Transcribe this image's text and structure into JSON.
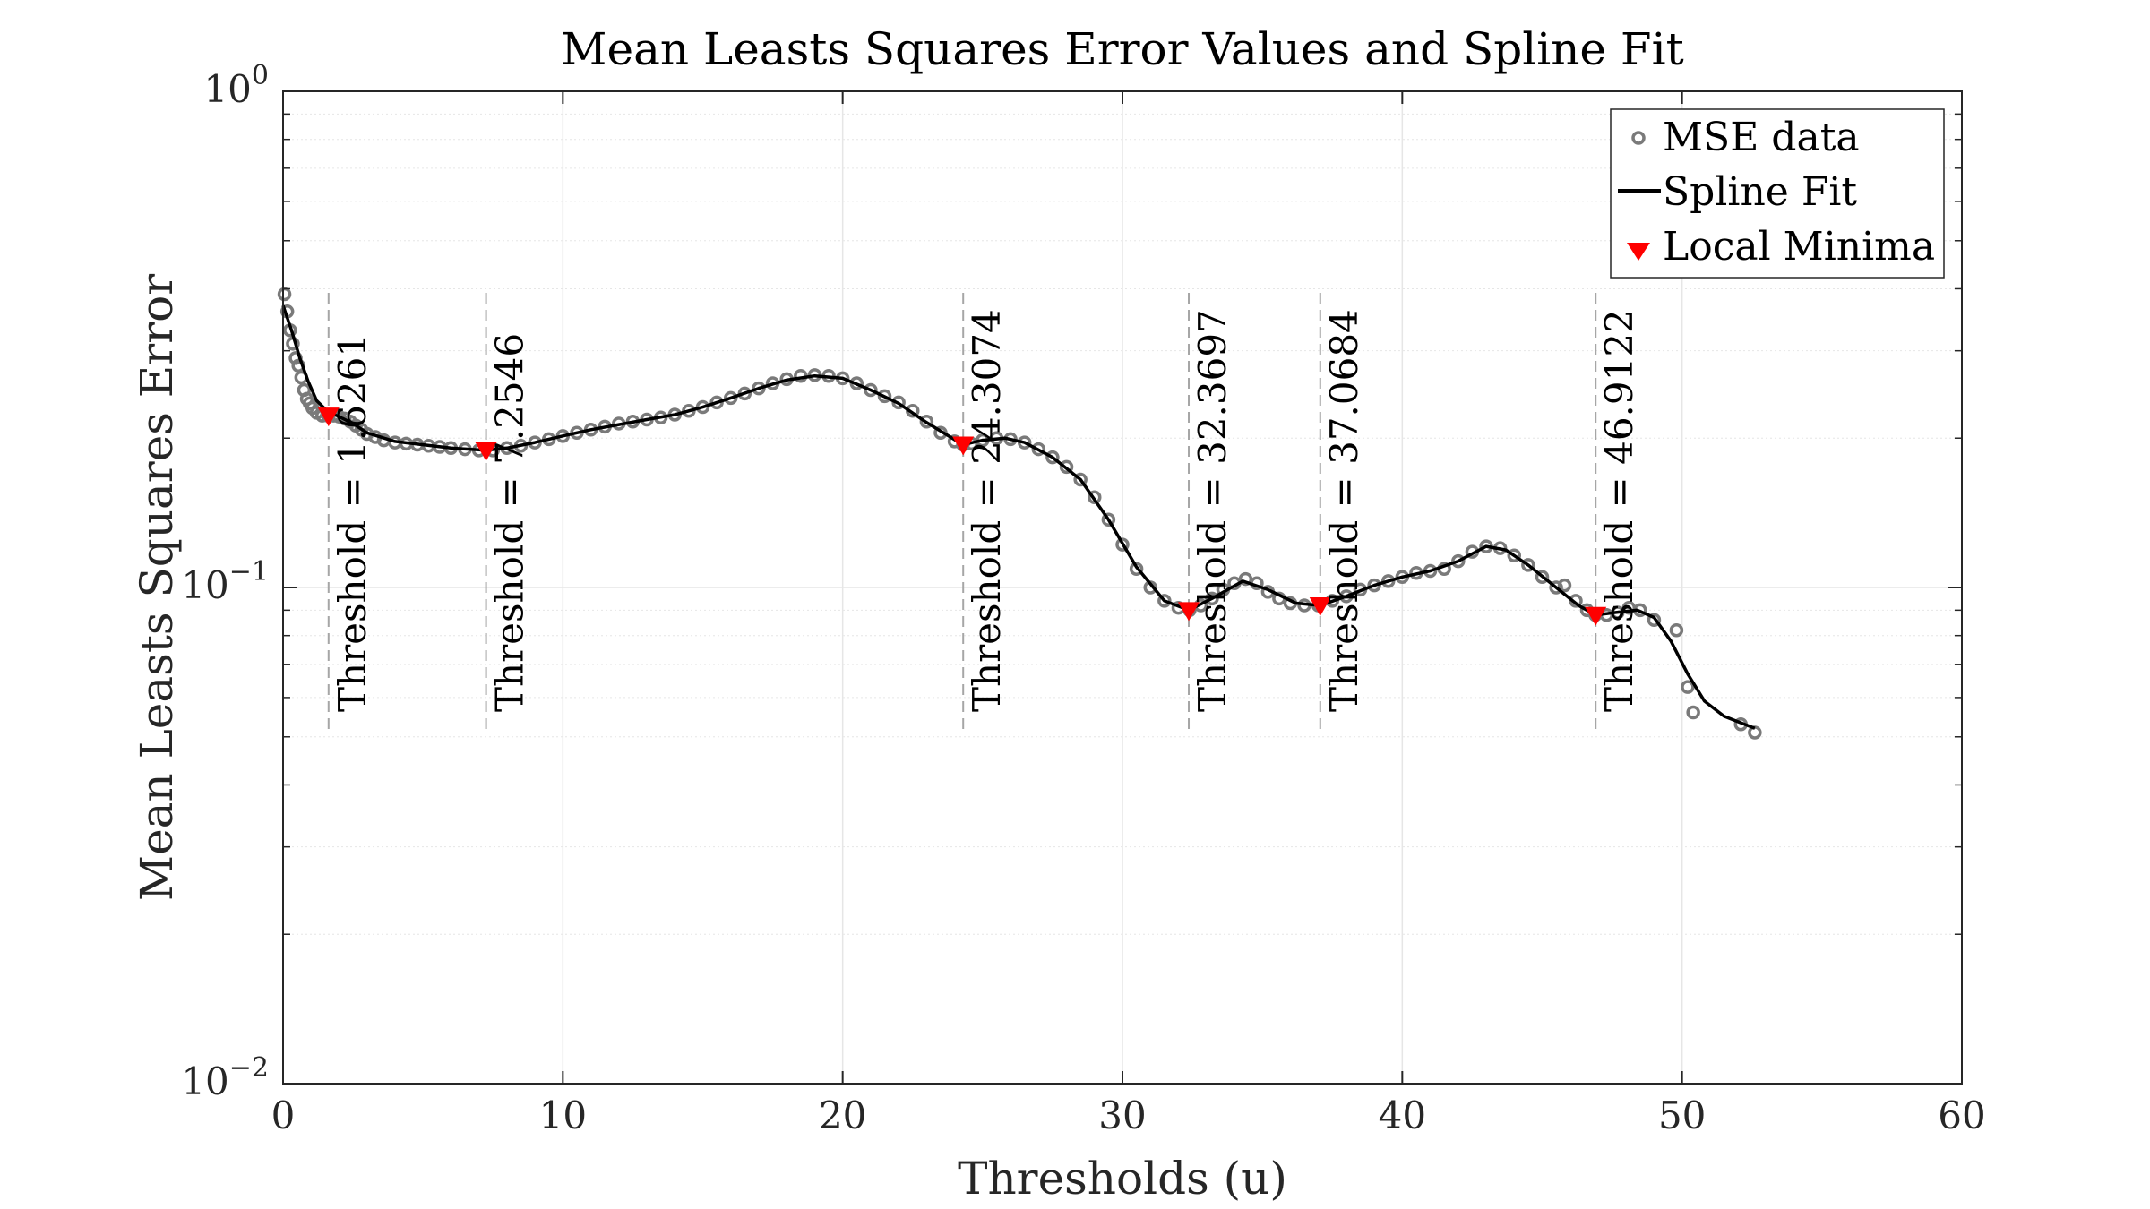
{
  "chart_data": {
    "type": "line",
    "title": "Mean Leasts Squares Error Values and Spline Fit",
    "xlabel": "Thresholds (u)",
    "ylabel": "Mean Leasts Squares Error",
    "xlim": [
      0,
      60
    ],
    "ylim": [
      0.01,
      1
    ],
    "yscale": "log",
    "grid": true,
    "legend_position": "top-right",
    "x_ticks": [
      {
        "value": 0,
        "label": "0"
      },
      {
        "value": 10,
        "label": "10"
      },
      {
        "value": 20,
        "label": "20"
      },
      {
        "value": 30,
        "label": "30"
      },
      {
        "value": 40,
        "label": "40"
      },
      {
        "value": 50,
        "label": "50"
      },
      {
        "value": 60,
        "label": "60"
      }
    ],
    "y_ticks": [
      {
        "value": 1,
        "base": "10",
        "exponent": "0"
      },
      {
        "value": 0.1,
        "base": "10",
        "exponent": "−1"
      },
      {
        "value": 0.01,
        "base": "10",
        "exponent": "−2"
      }
    ],
    "colors": {
      "mse_data": "#7a7a7a",
      "spline": "#000000",
      "minima": "#ff0000",
      "threshold_line": "#a6a6a6",
      "grid": "#e6e6e6",
      "axis": "#262626"
    },
    "legend": [
      {
        "label": "MSE data",
        "marker": "circle"
      },
      {
        "label": "Spline Fit",
        "marker": "line"
      },
      {
        "label": "Local Minima",
        "marker": "triangle-down"
      }
    ],
    "series": [
      {
        "name": "MSE data",
        "kind": "scatter",
        "points": [
          [
            0.05,
            0.39
          ],
          [
            0.15,
            0.36
          ],
          [
            0.25,
            0.33
          ],
          [
            0.35,
            0.31
          ],
          [
            0.45,
            0.29
          ],
          [
            0.55,
            0.28
          ],
          [
            0.65,
            0.265
          ],
          [
            0.75,
            0.25
          ],
          [
            0.85,
            0.24
          ],
          [
            0.95,
            0.235
          ],
          [
            1.05,
            0.23
          ],
          [
            1.2,
            0.225
          ],
          [
            1.4,
            0.222
          ],
          [
            1.6,
            0.222
          ],
          [
            1.8,
            0.222
          ],
          [
            2.0,
            0.221
          ],
          [
            2.2,
            0.219
          ],
          [
            2.4,
            0.216
          ],
          [
            2.6,
            0.212
          ],
          [
            2.8,
            0.208
          ],
          [
            3.0,
            0.204
          ],
          [
            3.3,
            0.201
          ],
          [
            3.6,
            0.198
          ],
          [
            4.0,
            0.196
          ],
          [
            4.4,
            0.195
          ],
          [
            4.8,
            0.194
          ],
          [
            5.2,
            0.193
          ],
          [
            5.6,
            0.192
          ],
          [
            6.0,
            0.191
          ],
          [
            6.5,
            0.19
          ],
          [
            7.0,
            0.189
          ],
          [
            7.5,
            0.189
          ],
          [
            8.0,
            0.191
          ],
          [
            8.5,
            0.193
          ],
          [
            9.0,
            0.196
          ],
          [
            9.5,
            0.199
          ],
          [
            10.0,
            0.202
          ],
          [
            10.5,
            0.205
          ],
          [
            11.0,
            0.208
          ],
          [
            11.5,
            0.211
          ],
          [
            12.0,
            0.214
          ],
          [
            12.5,
            0.216
          ],
          [
            13.0,
            0.218
          ],
          [
            13.5,
            0.22
          ],
          [
            14.0,
            0.223
          ],
          [
            14.5,
            0.227
          ],
          [
            15.0,
            0.231
          ],
          [
            15.5,
            0.236
          ],
          [
            16.0,
            0.241
          ],
          [
            16.5,
            0.246
          ],
          [
            17.0,
            0.252
          ],
          [
            17.5,
            0.258
          ],
          [
            18.0,
            0.263
          ],
          [
            18.5,
            0.267
          ],
          [
            19.0,
            0.268
          ],
          [
            19.5,
            0.267
          ],
          [
            20.0,
            0.264
          ],
          [
            20.5,
            0.258
          ],
          [
            21.0,
            0.25
          ],
          [
            21.5,
            0.243
          ],
          [
            22.0,
            0.236
          ],
          [
            22.5,
            0.227
          ],
          [
            23.0,
            0.216
          ],
          [
            23.5,
            0.205
          ],
          [
            24.0,
            0.197
          ],
          [
            24.3,
            0.194
          ],
          [
            24.6,
            0.195
          ],
          [
            25.0,
            0.198
          ],
          [
            25.5,
            0.2
          ],
          [
            26.0,
            0.199
          ],
          [
            26.5,
            0.196
          ],
          [
            27.0,
            0.19
          ],
          [
            27.5,
            0.183
          ],
          [
            28.0,
            0.175
          ],
          [
            28.5,
            0.165
          ],
          [
            29.0,
            0.152
          ],
          [
            29.5,
            0.137
          ],
          [
            30.0,
            0.122
          ],
          [
            30.5,
            0.109
          ],
          [
            31.0,
            0.1
          ],
          [
            31.5,
            0.094
          ],
          [
            32.0,
            0.091
          ],
          [
            32.4,
            0.09
          ],
          [
            32.8,
            0.092
          ],
          [
            33.2,
            0.095
          ],
          [
            33.6,
            0.099
          ],
          [
            34.0,
            0.102
          ],
          [
            34.4,
            0.104
          ],
          [
            34.8,
            0.102
          ],
          [
            35.2,
            0.098
          ],
          [
            35.6,
            0.095
          ],
          [
            36.0,
            0.093
          ],
          [
            36.5,
            0.092
          ],
          [
            37.0,
            0.092
          ],
          [
            37.5,
            0.094
          ],
          [
            38.0,
            0.096
          ],
          [
            38.5,
            0.099
          ],
          [
            39.0,
            0.101
          ],
          [
            39.5,
            0.103
          ],
          [
            40.0,
            0.105
          ],
          [
            40.5,
            0.107
          ],
          [
            41.0,
            0.108
          ],
          [
            41.5,
            0.109
          ],
          [
            42.0,
            0.113
          ],
          [
            42.5,
            0.118
          ],
          [
            43.0,
            0.121
          ],
          [
            43.5,
            0.12
          ],
          [
            44.0,
            0.116
          ],
          [
            44.5,
            0.111
          ],
          [
            45.0,
            0.105
          ],
          [
            45.5,
            0.1
          ],
          [
            45.8,
            0.101
          ],
          [
            46.2,
            0.094
          ],
          [
            46.6,
            0.09
          ],
          [
            46.9,
            0.088
          ],
          [
            47.3,
            0.088
          ],
          [
            47.7,
            0.089
          ],
          [
            48.1,
            0.091
          ],
          [
            48.5,
            0.09
          ],
          [
            49.0,
            0.086
          ],
          [
            49.8,
            0.082
          ],
          [
            50.2,
            0.063
          ],
          [
            50.4,
            0.056
          ],
          [
            52.1,
            0.053
          ],
          [
            52.6,
            0.051
          ]
        ]
      },
      {
        "name": "Spline Fit",
        "kind": "line",
        "points": [
          [
            0.0,
            0.37
          ],
          [
            0.3,
            0.33
          ],
          [
            0.6,
            0.29
          ],
          [
            0.9,
            0.26
          ],
          [
            1.2,
            0.238
          ],
          [
            1.6,
            0.226
          ],
          [
            2.0,
            0.221
          ],
          [
            2.5,
            0.214
          ],
          [
            3.0,
            0.205
          ],
          [
            4.0,
            0.197
          ],
          [
            5.0,
            0.194
          ],
          [
            6.0,
            0.191
          ],
          [
            7.25,
            0.189
          ],
          [
            8.0,
            0.191
          ],
          [
            9.0,
            0.196
          ],
          [
            10.0,
            0.202
          ],
          [
            11.0,
            0.208
          ],
          [
            12.0,
            0.213
          ],
          [
            13.0,
            0.218
          ],
          [
            14.0,
            0.223
          ],
          [
            15.0,
            0.231
          ],
          [
            16.0,
            0.241
          ],
          [
            17.0,
            0.252
          ],
          [
            18.0,
            0.262
          ],
          [
            19.0,
            0.267
          ],
          [
            20.0,
            0.264
          ],
          [
            21.0,
            0.25
          ],
          [
            22.0,
            0.235
          ],
          [
            23.0,
            0.215
          ],
          [
            24.3,
            0.194
          ],
          [
            25.0,
            0.198
          ],
          [
            25.8,
            0.2
          ],
          [
            26.5,
            0.196
          ],
          [
            27.5,
            0.183
          ],
          [
            28.5,
            0.165
          ],
          [
            29.5,
            0.137
          ],
          [
            30.5,
            0.11
          ],
          [
            31.5,
            0.094
          ],
          [
            32.37,
            0.09
          ],
          [
            33.2,
            0.095
          ],
          [
            34.3,
            0.103
          ],
          [
            35.2,
            0.099
          ],
          [
            36.2,
            0.093
          ],
          [
            37.07,
            0.092
          ],
          [
            38.0,
            0.096
          ],
          [
            39.0,
            0.101
          ],
          [
            40.0,
            0.105
          ],
          [
            41.0,
            0.108
          ],
          [
            42.0,
            0.113
          ],
          [
            43.0,
            0.121
          ],
          [
            43.7,
            0.119
          ],
          [
            44.5,
            0.111
          ],
          [
            45.5,
            0.1
          ],
          [
            46.3,
            0.092
          ],
          [
            46.91,
            0.088
          ],
          [
            47.6,
            0.089
          ],
          [
            48.4,
            0.09
          ],
          [
            49.0,
            0.087
          ],
          [
            49.6,
            0.078
          ],
          [
            50.2,
            0.067
          ],
          [
            50.8,
            0.059
          ],
          [
            51.5,
            0.055
          ],
          [
            52.6,
            0.052
          ]
        ]
      },
      {
        "name": "Local Minima",
        "kind": "marker",
        "points": [
          [
            1.6261,
            0.222
          ],
          [
            7.2546,
            0.189
          ],
          [
            24.3074,
            0.194
          ],
          [
            32.3697,
            0.09
          ],
          [
            37.0684,
            0.092
          ],
          [
            46.9122,
            0.088
          ]
        ]
      }
    ],
    "thresholds": [
      {
        "x": 1.6261,
        "label": "Threshold = 1.6261"
      },
      {
        "x": 7.2546,
        "label": "Threshold = 7.2546"
      },
      {
        "x": 24.3074,
        "label": "Threshold = 24.3074"
      },
      {
        "x": 32.3697,
        "label": "Threshold = 32.3697"
      },
      {
        "x": 37.0684,
        "label": "Threshold = 37.0684"
      },
      {
        "x": 46.9122,
        "label": "Threshold = 46.9122"
      }
    ]
  }
}
